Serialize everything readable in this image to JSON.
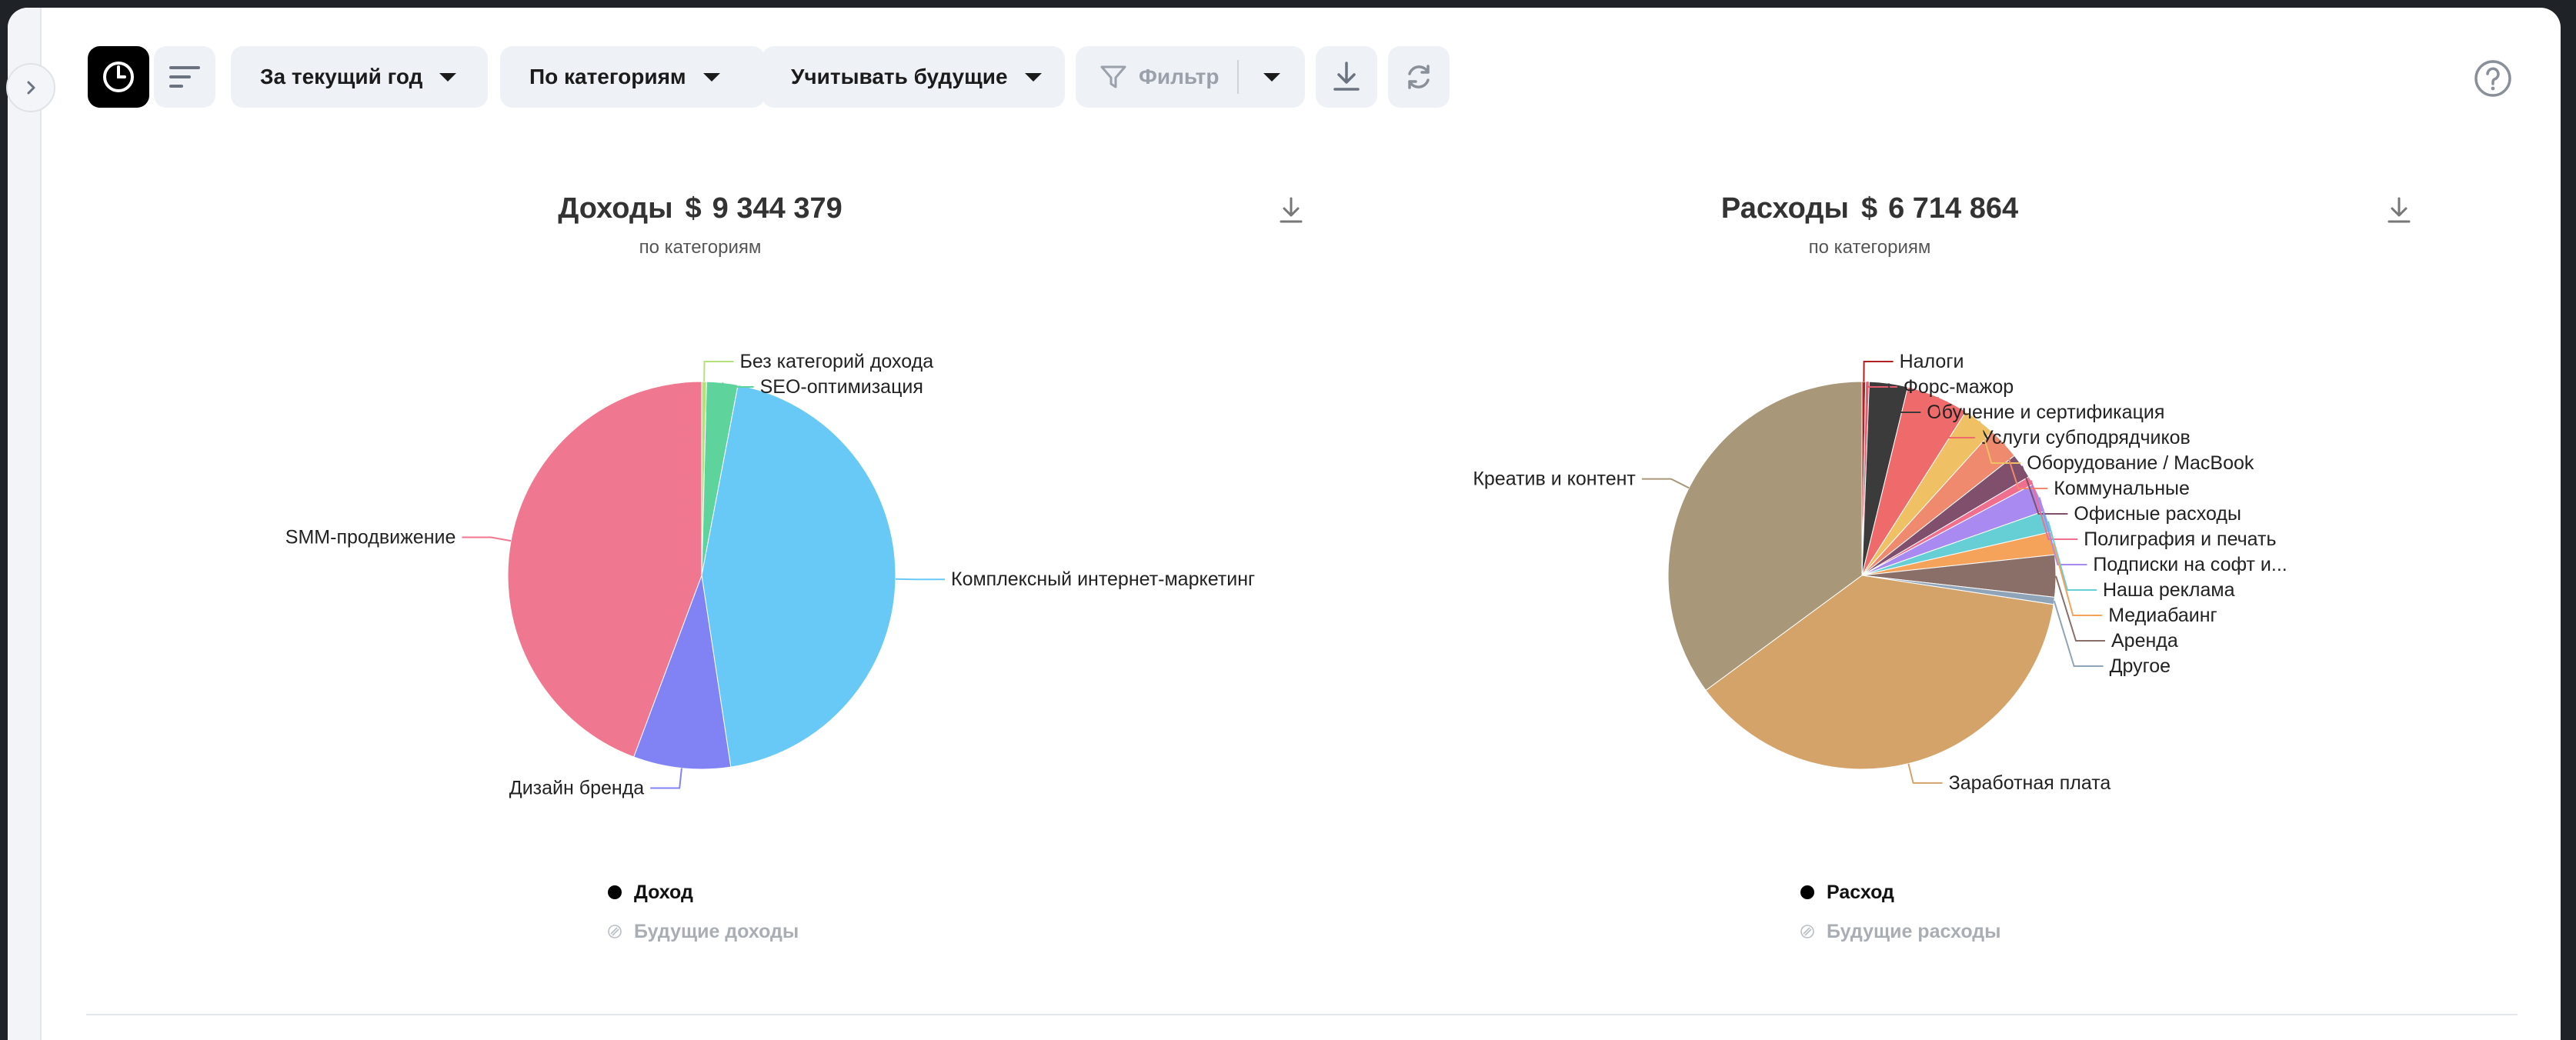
{
  "toolbar": {
    "period_label": "За текущий год",
    "grouping_label": "По категориям",
    "future_label": "Учитывать будущие",
    "filter_label": "Фильтр"
  },
  "icons": {
    "collapse": "chevron-right-icon",
    "view": "pie-chart-icon",
    "list": "list-icon",
    "filter": "filter-icon",
    "download": "download-icon",
    "refresh": "refresh-icon",
    "help": "help-icon"
  },
  "income": {
    "title": "Доходы",
    "currency": "$",
    "amount": "9 344 379",
    "subtitle": "по категориям",
    "legend": {
      "main": "Доход",
      "future": "Будущие доходы"
    }
  },
  "expense": {
    "title": "Расходы",
    "currency": "$",
    "amount": "6 714 864",
    "subtitle": "по категориям",
    "legend": {
      "main": "Расход",
      "future": "Будущие расходы"
    }
  },
  "chart_data": [
    {
      "type": "pie",
      "title": "Доходы $ 9 344 379",
      "subtitle": "по категориям",
      "start_angle_deg": 0,
      "slices": [
        {
          "label": "Без категорий дохода",
          "value": 0.4,
          "color": "#b3e27a"
        },
        {
          "label": "SEO-оптимизация",
          "value": 2.6,
          "color": "#5ed39c"
        },
        {
          "label": "Комплексный интернет-маркетинг",
          "value": 44.6,
          "color": "#69c9f6"
        },
        {
          "label": "Дизайн бренда",
          "value": 8.1,
          "color": "#8183f5"
        },
        {
          "label": "SMM-продвижение",
          "value": 44.3,
          "color": "#ef7890"
        }
      ]
    },
    {
      "type": "pie",
      "title": "Расходы $ 6 714 864",
      "subtitle": "по категориям",
      "start_angle_deg": 0,
      "slices": [
        {
          "label": "Налоги",
          "value": 0.3,
          "color": "#b22222"
        },
        {
          "label": "Форс-мажор",
          "value": 0.3,
          "color": "#e75a6b"
        },
        {
          "label": "Обучение и сертификация",
          "value": 3.2,
          "color": "#3b3b3b"
        },
        {
          "label": "Услуги субподрядчиков",
          "value": 5.2,
          "color": "#ef6b6b"
        },
        {
          "label": "Оборудование / MacBook",
          "value": 2.7,
          "color": "#efc064"
        },
        {
          "label": "Коммунальные",
          "value": 2.7,
          "color": "#f08a6e"
        },
        {
          "label": "Офисные расходы",
          "value": 2.1,
          "color": "#7f4f6c"
        },
        {
          "label": "Полиграфия и печать",
          "value": 0.7,
          "color": "#f06e8e"
        },
        {
          "label": "Подписки на софт и...",
          "value": 2.4,
          "color": "#a88af0"
        },
        {
          "label": "Наша реклама",
          "value": 1.8,
          "color": "#66cfd6"
        },
        {
          "label": "Медиабаинг",
          "value": 1.9,
          "color": "#f5a25a"
        },
        {
          "label": "Аренда",
          "value": 3.5,
          "color": "#8a6f69"
        },
        {
          "label": "Другое",
          "value": 0.6,
          "color": "#8fa4b8"
        },
        {
          "label": "Заработная плата",
          "value": 37.5,
          "color": "#d4a369"
        },
        {
          "label": "Креатив и контент",
          "value": 35.1,
          "color": "#a89879"
        }
      ]
    }
  ]
}
